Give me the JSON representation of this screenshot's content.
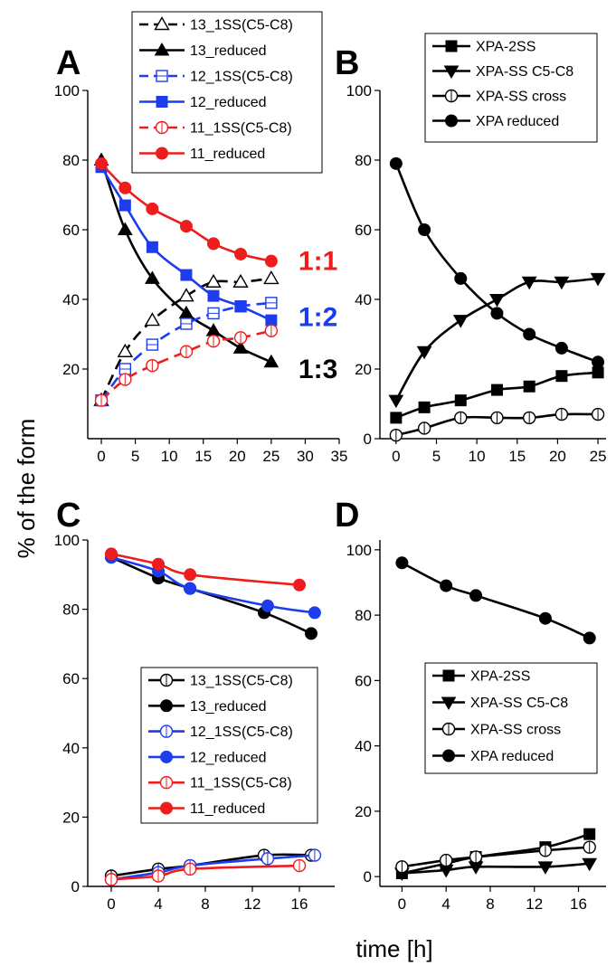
{
  "figure": {
    "ylabel": "% of the form",
    "xlabel": "time [h]"
  },
  "chart_data": [
    {
      "panel": "A",
      "type": "line",
      "xlim": [
        -2,
        35
      ],
      "ylim": [
        0,
        100
      ],
      "xticks": [
        0,
        5,
        10,
        15,
        20,
        25,
        30,
        35
      ],
      "yticks": [
        20,
        40,
        60,
        80,
        100
      ],
      "legend": "top",
      "annotations": [
        {
          "text": "1:1",
          "x": 29,
          "y": 51,
          "color": "#ee1c1c"
        },
        {
          "text": "1:2",
          "x": 29,
          "y": 35,
          "color": "#1c3cee"
        },
        {
          "text": "1:3",
          "x": 29,
          "y": 20,
          "color": "#000000"
        }
      ],
      "series": [
        {
          "name": "13_1SS(C5-C8)",
          "color": "#000000",
          "marker": "triangle-open",
          "dash": true,
          "x": [
            0,
            3.5,
            7.5,
            12.5,
            16.5,
            20.5,
            25
          ],
          "y": [
            11,
            25,
            34,
            41,
            45,
            45,
            46
          ]
        },
        {
          "name": "13_reduced",
          "color": "#000000",
          "marker": "triangle",
          "dash": false,
          "x": [
            0,
            3.5,
            7.5,
            12.5,
            16.5,
            20.5,
            25
          ],
          "y": [
            80,
            60,
            46,
            36,
            31,
            26,
            22
          ]
        },
        {
          "name": "12_1SS(C5-C8)",
          "color": "#1c3cee",
          "marker": "square-open",
          "dash": true,
          "x": [
            0,
            3.5,
            7.5,
            12.5,
            16.5,
            20.5,
            25
          ],
          "y": [
            11,
            20,
            27,
            33,
            36,
            38,
            39
          ]
        },
        {
          "name": "12_reduced",
          "color": "#1c3cee",
          "marker": "square",
          "dash": false,
          "x": [
            0,
            3.5,
            7.5,
            12.5,
            16.5,
            20.5,
            25
          ],
          "y": [
            78,
            67,
            55,
            47,
            41,
            38,
            34
          ]
        },
        {
          "name": "11_1SS(C5-C8)",
          "color": "#ee1c1c",
          "marker": "circle-open",
          "dash": true,
          "x": [
            0,
            3.5,
            7.5,
            12.5,
            16.5,
            20.5,
            25
          ],
          "y": [
            11,
            17,
            21,
            25,
            28,
            29,
            31
          ]
        },
        {
          "name": "11_reduced",
          "color": "#ee1c1c",
          "marker": "circle",
          "dash": false,
          "x": [
            0,
            3.5,
            7.5,
            12.5,
            16.5,
            20.5,
            25
          ],
          "y": [
            79,
            72,
            66,
            61,
            56,
            53,
            51
          ]
        }
      ]
    },
    {
      "panel": "B",
      "type": "line",
      "xlim": [
        -2,
        26
      ],
      "ylim": [
        0,
        100
      ],
      "xticks": [
        0,
        5,
        10,
        15,
        20,
        25
      ],
      "yticks": [
        0,
        20,
        40,
        60,
        80,
        100
      ],
      "legend": "top-right",
      "series": [
        {
          "name": "XPA-2SS",
          "color": "#000000",
          "marker": "square",
          "dash": false,
          "x": [
            0,
            3.5,
            8,
            12.5,
            16.5,
            20.5,
            25
          ],
          "y": [
            6,
            9,
            11,
            14,
            15,
            18,
            19
          ]
        },
        {
          "name": "XPA-SS C5-C8",
          "color": "#000000",
          "marker": "triangle-down",
          "dash": false,
          "x": [
            0,
            3.5,
            8,
            12.5,
            16.5,
            20.5,
            25
          ],
          "y": [
            11,
            25,
            34,
            40,
            45,
            45,
            46
          ]
        },
        {
          "name": "XPA-SS cross",
          "color": "#000000",
          "marker": "circle-open",
          "dash": false,
          "x": [
            0,
            3.5,
            8,
            12.5,
            16.5,
            20.5,
            25
          ],
          "y": [
            1,
            3,
            6,
            6,
            6,
            7,
            7
          ]
        },
        {
          "name": "XPA reduced",
          "color": "#000000",
          "marker": "circle",
          "dash": false,
          "x": [
            0,
            3.5,
            8,
            12.5,
            16.5,
            20.5,
            25
          ],
          "y": [
            79,
            60,
            46,
            36,
            30,
            26,
            22
          ]
        }
      ]
    },
    {
      "panel": "C",
      "type": "line",
      "xlim": [
        -2,
        19
      ],
      "ylim": [
        0,
        100
      ],
      "xticks": [
        0,
        4,
        8,
        12,
        16
      ],
      "yticks": [
        0,
        20,
        40,
        60,
        80,
        100
      ],
      "legend": "center",
      "series": [
        {
          "name": "13_1SS(C5-C8)",
          "color": "#000000",
          "marker": "circle-open",
          "dash": false,
          "x": [
            0,
            4,
            6.7,
            13,
            17
          ],
          "y": [
            3,
            5,
            6,
            9,
            9
          ]
        },
        {
          "name": "13_reduced",
          "color": "#000000",
          "marker": "circle",
          "dash": false,
          "x": [
            0,
            4,
            6.7,
            13,
            17
          ],
          "y": [
            95,
            89,
            86,
            79,
            73
          ]
        },
        {
          "name": "12_1SS(C5-C8)",
          "color": "#1c3cee",
          "marker": "circle-open",
          "dash": false,
          "x": [
            0,
            4,
            6.7,
            13.3,
            17.3
          ],
          "y": [
            2,
            4,
            6,
            8,
            9
          ]
        },
        {
          "name": "12_reduced",
          "color": "#1c3cee",
          "marker": "circle",
          "dash": false,
          "x": [
            0,
            4,
            6.7,
            13.3,
            17.3
          ],
          "y": [
            95,
            91,
            86,
            81,
            79
          ]
        },
        {
          "name": "11_1SS(C5-C8)",
          "color": "#ee1c1c",
          "marker": "circle-open",
          "dash": false,
          "x": [
            0,
            4,
            6.7,
            16
          ],
          "y": [
            2,
            3,
            5,
            6
          ]
        },
        {
          "name": "11_reduced",
          "color": "#ee1c1c",
          "marker": "circle",
          "dash": false,
          "x": [
            0,
            4,
            6.7,
            16
          ],
          "y": [
            96,
            93,
            90,
            87
          ]
        }
      ]
    },
    {
      "panel": "D",
      "type": "line",
      "xlim": [
        -2,
        18.5
      ],
      "ylim": [
        -3,
        103
      ],
      "xticks": [
        0,
        4,
        8,
        12,
        16
      ],
      "yticks": [
        0,
        20,
        40,
        60,
        80,
        100
      ],
      "legend": "center-right",
      "series": [
        {
          "name": "XPA-2SS",
          "color": "#000000",
          "marker": "square",
          "dash": false,
          "x": [
            0,
            4,
            6.7,
            13,
            17
          ],
          "y": [
            1,
            4,
            6,
            9,
            13
          ]
        },
        {
          "name": "XPA-SS C5-C8",
          "color": "#000000",
          "marker": "triangle-down",
          "dash": false,
          "x": [
            0,
            4,
            6.7,
            13,
            17
          ],
          "y": [
            1,
            2,
            3,
            3,
            4
          ]
        },
        {
          "name": "XPA-SS cross",
          "color": "#000000",
          "marker": "circle-open",
          "dash": false,
          "x": [
            0,
            4,
            6.7,
            13,
            17
          ],
          "y": [
            3,
            5,
            6,
            8,
            9
          ]
        },
        {
          "name": "XPA reduced",
          "color": "#000000",
          "marker": "circle",
          "dash": false,
          "x": [
            0,
            4,
            6.7,
            13,
            17
          ],
          "y": [
            96,
            89,
            86,
            79,
            73
          ]
        }
      ]
    }
  ]
}
